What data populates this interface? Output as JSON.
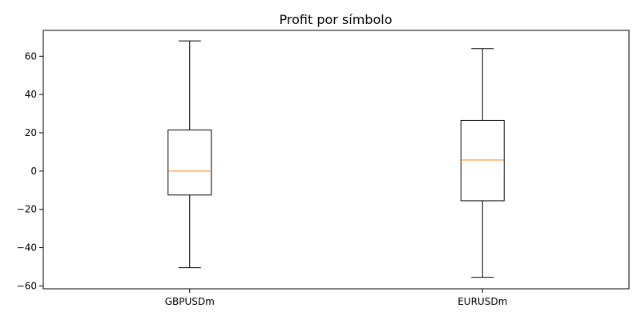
{
  "chart_data": {
    "type": "boxplot",
    "title": "Profit por símbolo",
    "xlabel": "",
    "ylabel": "",
    "ylim": [
      -61.5,
      73.5
    ],
    "yticks": [
      -60,
      -40,
      -20,
      0,
      20,
      40,
      60
    ],
    "grid": false,
    "categories": [
      "GBPUSDm",
      "EURUSDm"
    ],
    "boxes": [
      {
        "category": "GBPUSDm",
        "whisker_low": -50.5,
        "q1": -12.5,
        "median": 0,
        "q3": 21.5,
        "whisker_high": 68
      },
      {
        "category": "EURUSDm",
        "whisker_low": -55.5,
        "q1": -15.5,
        "median": 5.8,
        "q3": 26.5,
        "whisker_high": 64
      }
    ],
    "colors": {
      "box": "#000000",
      "median": "#ff7f0e"
    }
  }
}
